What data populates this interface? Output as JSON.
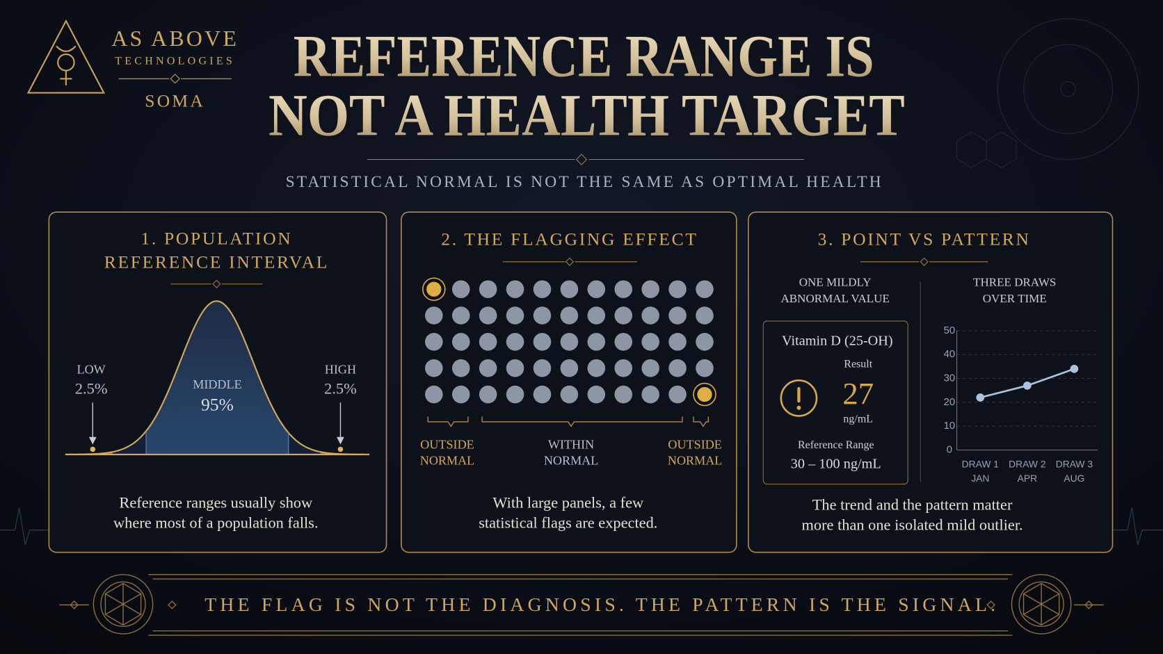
{
  "brand": {
    "name": "AS ABOVE",
    "subtitle": "TECHNOLOGIES",
    "product": "SOMA"
  },
  "header": {
    "title": [
      "REFERENCE RANGE IS",
      "NOT A HEALTH TARGET"
    ],
    "subtitle": "STATISTICAL NORMAL IS NOT THE SAME AS OPTIMAL HEALTH"
  },
  "panels": [
    {
      "title": [
        "1. POPULATION",
        "REFERENCE INTERVAL"
      ],
      "labels": {
        "low": [
          "LOW",
          "2.5%"
        ],
        "middle": [
          "MIDDLE",
          "95%"
        ],
        "high": [
          "HIGH",
          "2.5%"
        ]
      },
      "caption": [
        "Reference ranges usually show",
        "where most of a population falls."
      ]
    },
    {
      "title": "2. THE FLAGGING EFFECT",
      "groups": [
        [
          "OUTSIDE",
          "NORMAL"
        ],
        [
          "WITHIN",
          "NORMAL"
        ],
        [
          "OUTSIDE",
          "NORMAL"
        ]
      ],
      "caption": [
        "With large panels, a few",
        "statistical flags are expected."
      ]
    },
    {
      "title": "3. POINT VS PATTERN",
      "left": {
        "heading": [
          "ONE MILDLY",
          "ABNORMAL VALUE"
        ],
        "test": "Vitamin D (25-OH)",
        "result_label": "Result",
        "result": 27,
        "unit": "ng/mL",
        "range_label": "Reference Range",
        "range": "30 – 100 ng/mL"
      },
      "right": {
        "heading": [
          "THREE DRAWS",
          "OVER TIME"
        ],
        "chart": {
          "type": "line",
          "categories": [
            [
              "DRAW 1",
              "JAN"
            ],
            [
              "DRAW 2",
              "APR"
            ],
            [
              "DRAW 3",
              "AUG"
            ]
          ],
          "values": [
            22,
            27,
            34
          ],
          "color": "#a9c3dc",
          "ylim": [
            0,
            50
          ],
          "yticks": [
            0,
            10,
            20,
            30,
            40,
            50
          ],
          "grid": true
        }
      },
      "caption": [
        "The trend and the pattern matter",
        "more than one isolated mild outlier."
      ]
    }
  ],
  "footer": "THE FLAG IS NOT THE DIAGNOSIS. THE PATTERN IS THE SIGNAL."
}
